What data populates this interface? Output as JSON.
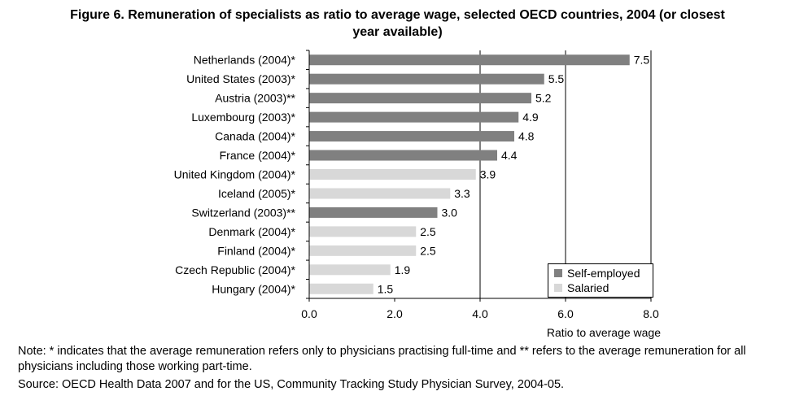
{
  "title_line1": "Figure 6. Remuneration of specialists as ratio to average wage, selected OECD countries, 2004 (or closest",
  "title_line2": "year available)",
  "note": "Note: * indicates that the average remuneration refers only to physicians practising full-time and ** refers to the average remuneration for all physicians including those working part-time.",
  "source": "Source: OECD Health Data 2007 and for the US, Community Tracking Study Physician Survey, 2004-05.",
  "colors": {
    "self_employed": "#808080",
    "salaried": "#d8d8d8"
  },
  "chart_data": {
    "type": "bar",
    "orientation": "horizontal",
    "title": "Remuneration of specialists as ratio to average wage, selected OECD countries, 2004 (or closest year available)",
    "xlabel": "Ratio to average wage",
    "ylabel": "",
    "xlim": [
      0,
      8
    ],
    "xticks": [
      "0.0",
      "2.0",
      "4.0",
      "6.0",
      "8.0"
    ],
    "grid": "vertical",
    "legend_position": "bottom-right",
    "legend": [
      {
        "key": "self",
        "label": "Self-employed"
      },
      {
        "key": "sal",
        "label": "Salaried"
      }
    ],
    "bars": [
      {
        "label": "Netherlands (2004)*",
        "value": 7.5,
        "display": "7.5",
        "type": "self"
      },
      {
        "label": "United States (2003)*",
        "value": 5.5,
        "display": "5.5",
        "type": "self"
      },
      {
        "label": "Austria (2003)**",
        "value": 5.2,
        "display": "5.2",
        "type": "self"
      },
      {
        "label": "Luxembourg (2003)*",
        "value": 4.9,
        "display": "4.9",
        "type": "self"
      },
      {
        "label": "Canada (2004)*",
        "value": 4.8,
        "display": "4.8",
        "type": "self"
      },
      {
        "label": "France (2004)*",
        "value": 4.4,
        "display": "4.4",
        "type": "self"
      },
      {
        "label": "United Kingdom (2004)*",
        "value": 3.9,
        "display": "3.9",
        "type": "sal"
      },
      {
        "label": "Iceland (2005)*",
        "value": 3.3,
        "display": "3.3",
        "type": "sal"
      },
      {
        "label": "Switzerland (2003)**",
        "value": 3.0,
        "display": "3.0",
        "type": "self"
      },
      {
        "label": "Denmark (2004)*",
        "value": 2.5,
        "display": "2.5",
        "type": "sal"
      },
      {
        "label": "Finland (2004)*",
        "value": 2.5,
        "display": "2.5",
        "type": "sal"
      },
      {
        "label": "Czech Republic (2004)*",
        "value": 1.9,
        "display": "1.9",
        "type": "sal"
      },
      {
        "label": "Hungary (2004)*",
        "value": 1.5,
        "display": "1.5",
        "type": "sal"
      }
    ]
  }
}
